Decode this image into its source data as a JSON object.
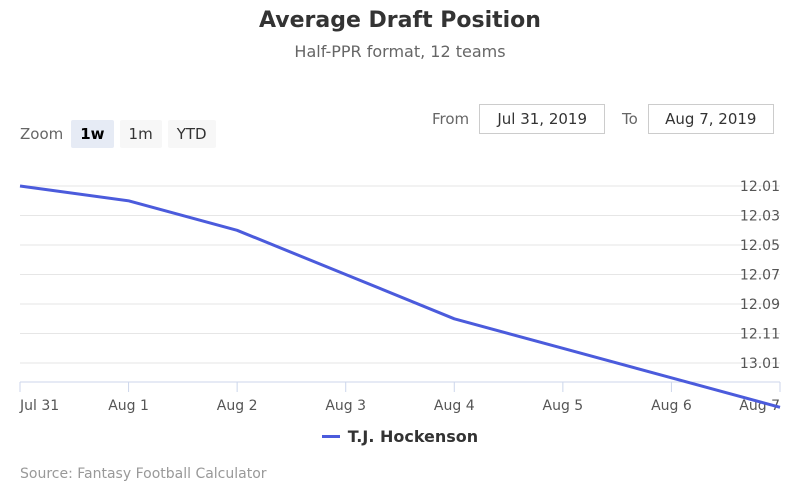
{
  "chart_data": {
    "type": "line",
    "title": "Average Draft Position",
    "subtitle": "Half-PPR format, 12 teams",
    "x": [
      "Jul 31",
      "Aug 1",
      "Aug 2",
      "Aug 3",
      "Aug 4",
      "Aug 5",
      "Aug 6",
      "Aug 7"
    ],
    "series": [
      {
        "name": "T.J. Hockenson",
        "values": [
          12.01,
          12.02,
          12.04,
          12.07,
          12.1,
          12.12,
          13.02,
          13.04
        ]
      }
    ],
    "y_ticks": [
      "12.01",
      "12.03",
      "12.05",
      "12.07",
      "12.09",
      "12.11",
      "13.01"
    ],
    "legend_position": "bottom",
    "grid": true,
    "line_color": "#4b5bdc"
  },
  "zoom": {
    "label": "Zoom",
    "options": [
      "1w",
      "1m",
      "YTD"
    ],
    "active": "1w"
  },
  "range": {
    "from_label": "From",
    "from_value": "Jul 31, 2019",
    "to_label": "To",
    "to_value": "Aug 7, 2019"
  },
  "credits": "Source: Fantasy Football Calculator"
}
